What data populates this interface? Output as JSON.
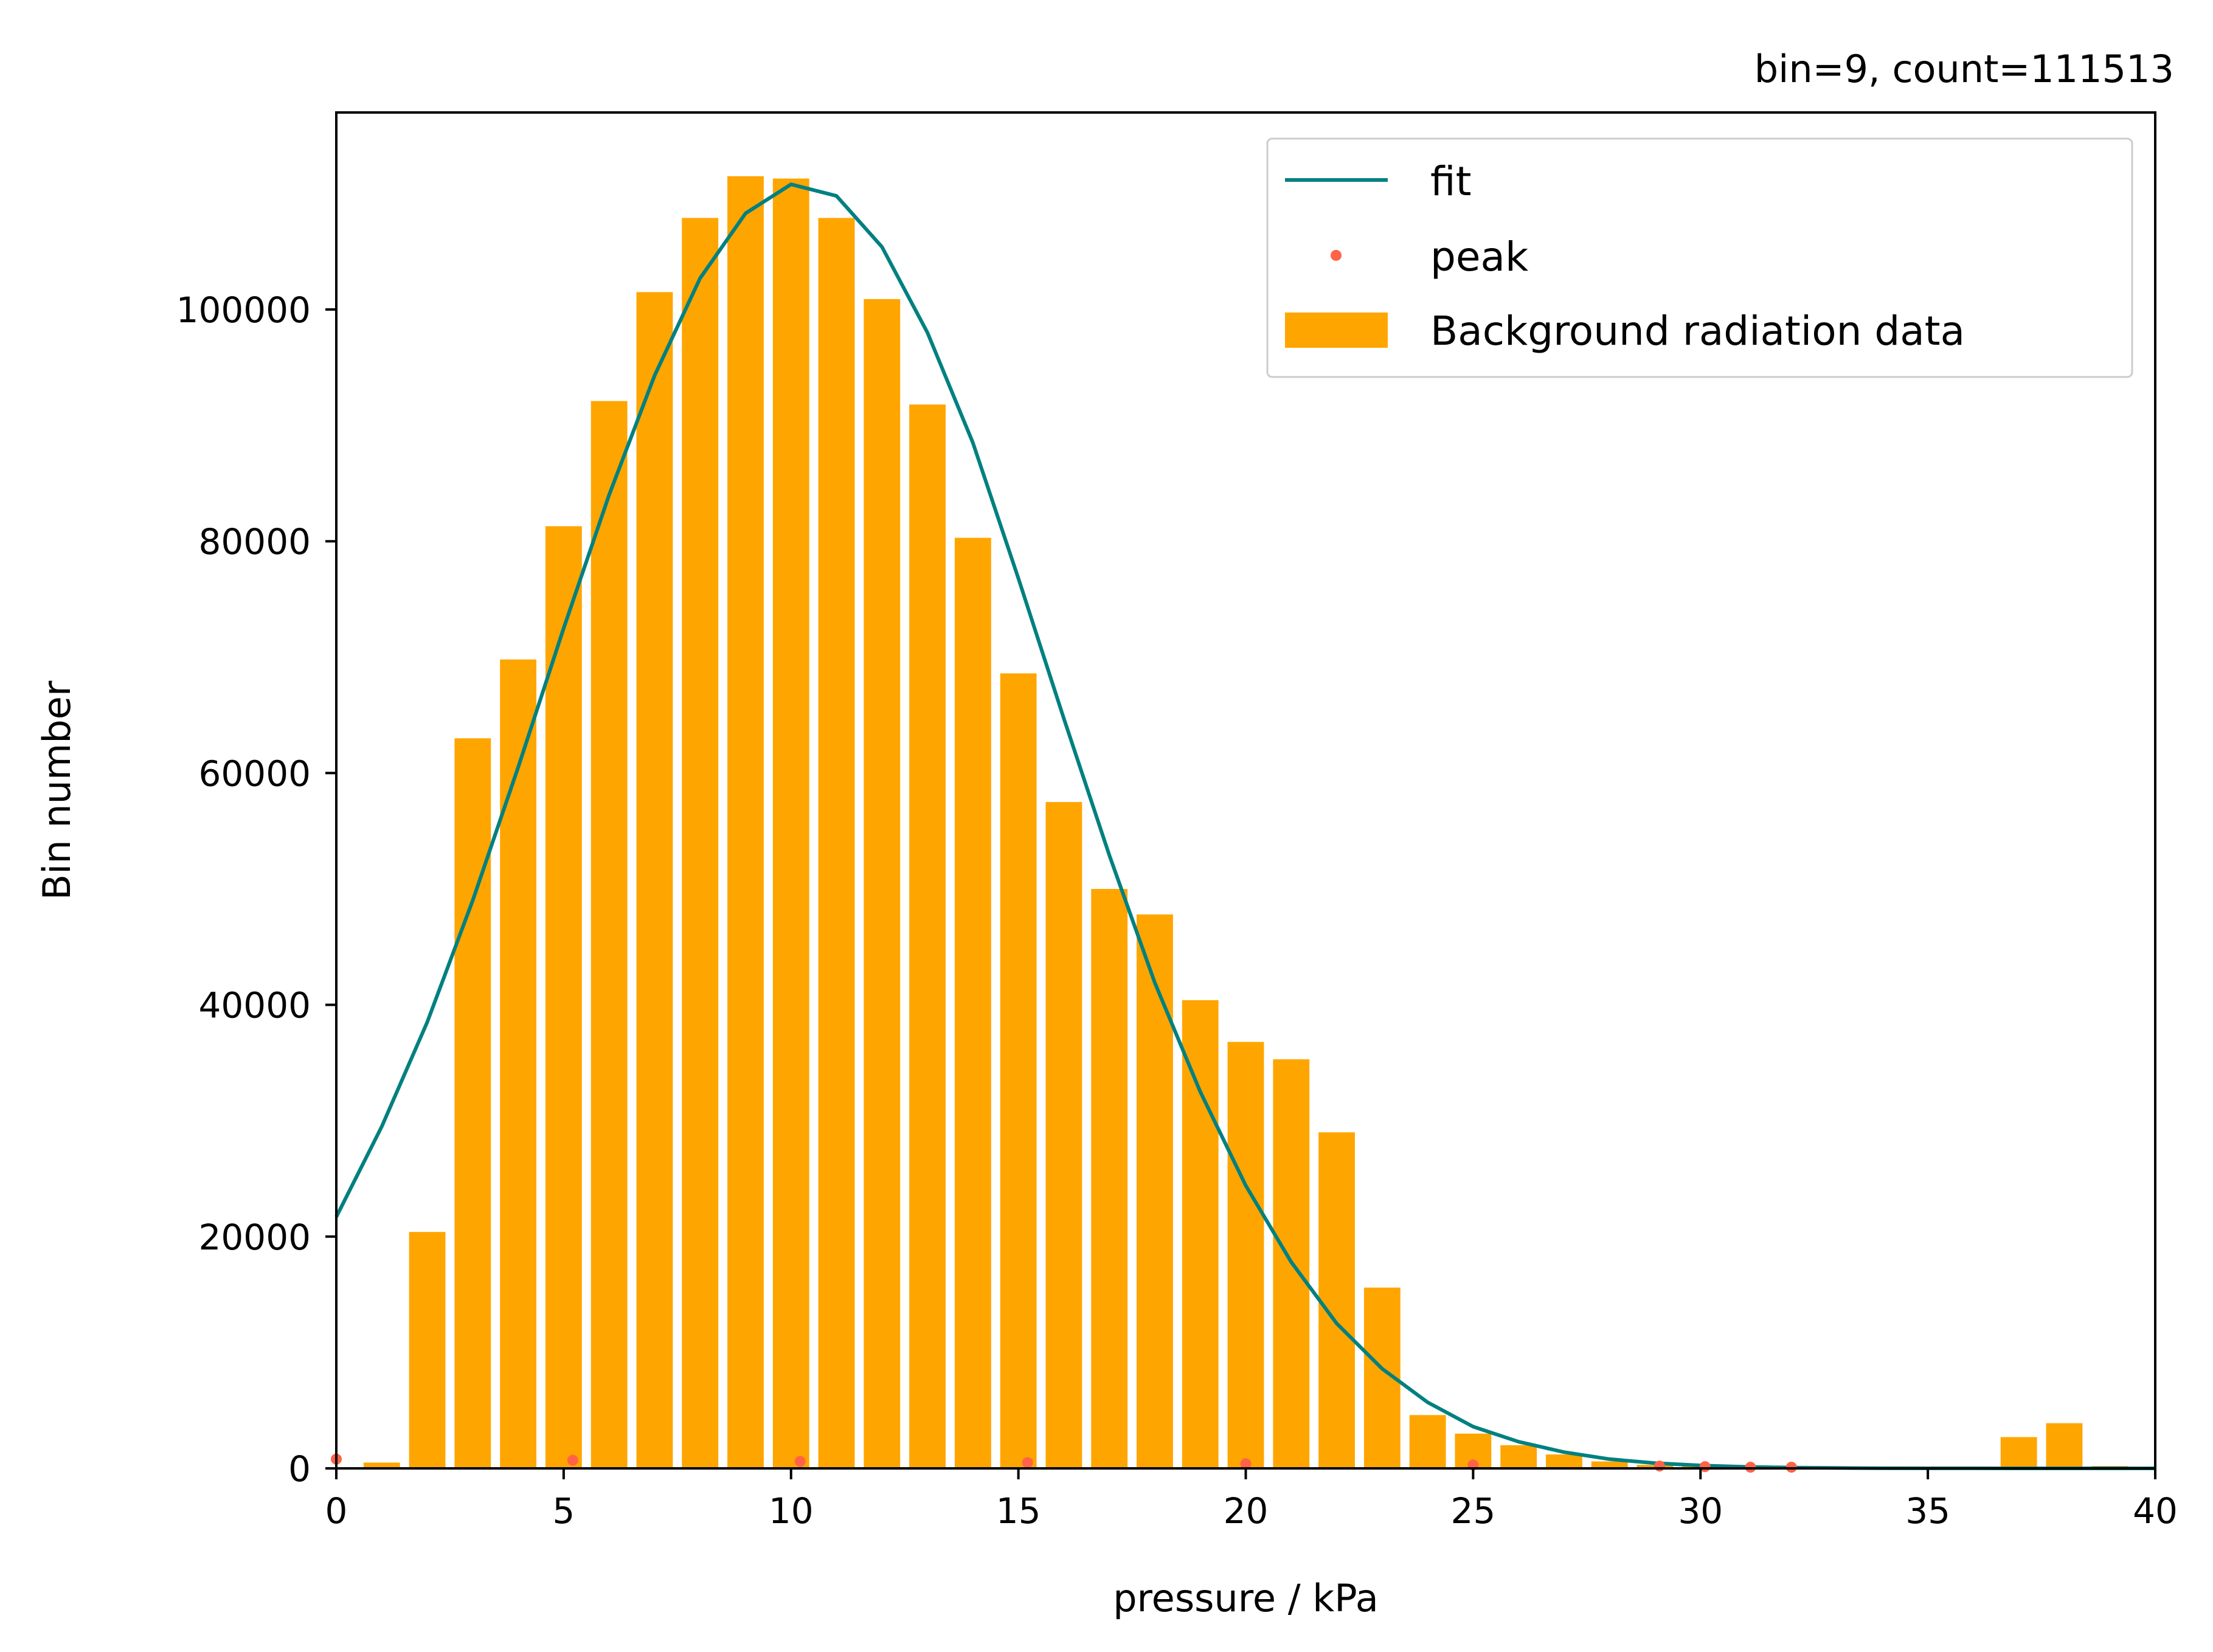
{
  "chart_data": {
    "type": "bar",
    "title": "bin=9, count=111513",
    "xlabel": "pressure / kPa",
    "ylabel": "Bin number",
    "xlim": [
      0,
      40
    ],
    "ylim": [
      0,
      117000
    ],
    "xticks": [
      0,
      5,
      10,
      15,
      20,
      25,
      30,
      35,
      40
    ],
    "yticks": [
      0,
      20000,
      40000,
      60000,
      80000,
      100000
    ],
    "grid": false,
    "legend_position": "top-right",
    "colors": {
      "bars": "#ffa500",
      "fit": "#008080",
      "peak": "#ff6347",
      "axes": "#000000"
    },
    "bars": {
      "name": "Background radiation data",
      "x": [
        0,
        1,
        2,
        3,
        4,
        5,
        6,
        7,
        8,
        9,
        10,
        11,
        12,
        13,
        14,
        15,
        16,
        17,
        18,
        19,
        20,
        21,
        22,
        23,
        24,
        25,
        26,
        27,
        28,
        29,
        30,
        31,
        32,
        33,
        34,
        35,
        36,
        37,
        38,
        39
      ],
      "values": [
        0,
        500,
        20400,
        63000,
        69800,
        81300,
        92100,
        101500,
        107900,
        111500,
        111300,
        107900,
        100900,
        91800,
        80300,
        68600,
        57500,
        50000,
        47800,
        40400,
        36800,
        35300,
        29000,
        15600,
        4600,
        3000,
        2000,
        1200,
        600,
        300,
        200,
        100,
        100,
        0,
        0,
        0,
        0,
        2700,
        3900,
        200
      ]
    },
    "fit": {
      "name": "fit",
      "x": [
        0,
        1,
        2,
        3,
        4,
        5,
        6,
        7,
        8,
        9,
        10,
        11,
        12,
        13,
        14,
        15,
        16,
        17,
        18,
        19,
        20,
        21,
        22,
        23,
        24,
        25,
        26,
        27,
        28,
        29,
        30,
        31,
        32,
        33,
        34,
        35,
        36,
        37,
        38,
        39,
        40
      ],
      "values": [
        21700,
        29500,
        38500,
        49000,
        60500,
        72500,
        84000,
        94300,
        102700,
        108300,
        110800,
        109800,
        105400,
        98000,
        88500,
        76800,
        64700,
        52900,
        41900,
        32500,
        24400,
        17800,
        12500,
        8600,
        5700,
        3600,
        2300,
        1400,
        800,
        450,
        250,
        130,
        70,
        35,
        15,
        7,
        3,
        1,
        0,
        0,
        0
      ]
    },
    "peaks": {
      "name": "peak",
      "x": [
        0,
        5.2,
        10.2,
        15.2,
        20,
        25,
        29.1,
        30.1,
        31.1,
        32
      ],
      "values": [
        800,
        700,
        600,
        500,
        400,
        300,
        200,
        150,
        100,
        100
      ]
    },
    "legend": [
      "fit",
      "peak",
      "Background radiation data"
    ]
  }
}
